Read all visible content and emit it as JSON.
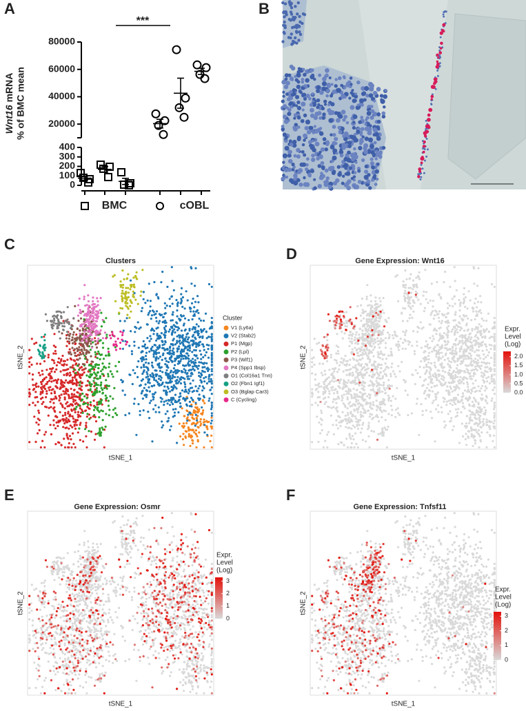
{
  "panels": [
    "A",
    "B",
    "C",
    "D",
    "E",
    "F"
  ],
  "chart_data": [
    {
      "type": "dotplot",
      "y_label": {
        "gene": "Wnt16",
        "line1": "mRNA",
        "line2": "% of BMC mean"
      },
      "categories": [
        "BMC",
        "cOBL"
      ],
      "groups": [
        {
          "name": "BMC",
          "marker": "square",
          "color": "#000000",
          "axis": "y",
          "series": [
            [
              130,
              65,
              80,
              30
            ],
            [
              218,
              196,
              175,
              87
            ],
            [
              138,
              22,
              7,
              0
            ]
          ]
        },
        {
          "name": "cOBL",
          "marker": "circle",
          "color": "#000000",
          "axis": "y2",
          "series": [
            [
              27500,
              22500,
              19000,
              12400
            ],
            [
              74400,
              39000,
              32000,
              25000
            ],
            [
              63300,
              61300,
              56300,
              53300
            ]
          ]
        }
      ],
      "ylim": [
        0,
        400
      ],
      "yticks": [
        0,
        100,
        200,
        300,
        400
      ],
      "y2lim": [
        10000,
        80000
      ],
      "y2ticks": [
        20000,
        40000,
        60000,
        80000
      ],
      "annotation": "***"
    },
    {
      "type": "micrograph"
    },
    {
      "type": "tsne",
      "title": "Clusters",
      "x_label": "tSNE_1",
      "y_label": "tSNE_2",
      "legend_title": "Cluster",
      "clusters": [
        {
          "name": "V1 (Ly6a)",
          "color": "#f5861f"
        },
        {
          "name": "V2 (Stab2)",
          "color": "#1f77b4"
        },
        {
          "name": "P1 (Mgp)",
          "color": "#d62728"
        },
        {
          "name": "P2 (Lpl)",
          "color": "#2ca02c"
        },
        {
          "name": "P3 (Wif1)",
          "color": "#8c564b"
        },
        {
          "name": "P4 (Spp1 Ibsp)",
          "color": "#e377c2"
        },
        {
          "name": "O1 (Col16a1 Tnn)",
          "color": "#7f7f7f"
        },
        {
          "name": "O2 (Fbn1 Igf1)",
          "color": "#17a085"
        },
        {
          "name": "O3 (Bglap Car3)",
          "color": "#bcbd22"
        },
        {
          "name": "C (Cycling)",
          "color": "#e7298a"
        }
      ]
    },
    {
      "type": "expression",
      "title": "Gene Expression: Wnt16",
      "x_label": "tSNE_1",
      "y_label": "tSNE_2",
      "colorbar": {
        "title": [
          "Expr.",
          "Level",
          "(Log)"
        ],
        "lim": [
          0,
          2.3
        ],
        "ticks": [
          {
            "value": 0,
            "label": "0.0"
          },
          0.5,
          {
            "value": 1,
            "label": "1.0"
          },
          1.5,
          {
            "value": 2,
            "label": "2.0"
          }
        ],
        "low_color": "#d9d9d9",
        "high_color": "#e3120b"
      }
    },
    {
      "type": "expression",
      "title": "Gene Expression: Osmr",
      "x_label": "tSNE_1",
      "y_label": "tSNE_2",
      "colorbar": {
        "title": [
          "Expr.",
          "Level",
          "(Log)"
        ],
        "lim": [
          0,
          3.3
        ],
        "ticks": [
          0,
          1,
          2,
          3
        ],
        "low_color": "#d9d9d9",
        "high_color": "#e3120b"
      }
    },
    {
      "type": "expression",
      "title": "Gene Expression: Tnfsf11",
      "x_label": "tSNE_1",
      "y_label": "tSNE_2",
      "colorbar": {
        "title": [
          "Expr.",
          "Level",
          "(Log)"
        ],
        "lim": [
          0,
          3.3
        ],
        "ticks": [
          0,
          1,
          2,
          3
        ],
        "low_color": "#d9d9d9",
        "high_color": "#e3120b"
      }
    }
  ]
}
